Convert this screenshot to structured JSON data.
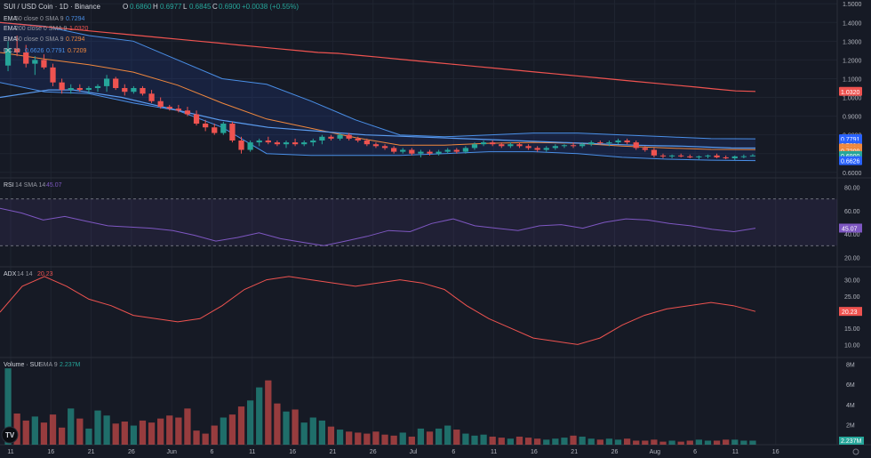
{
  "header": {
    "symbol": "SUI / USD Coin · 1D · Binance",
    "ohlc": {
      "o_label": "O",
      "o": "0.6860",
      "h_label": "H",
      "h": "0.6977",
      "l_label": "L",
      "l": "0.6845",
      "c_label": "C",
      "c": "0.6900",
      "chg": "+0.0038 (+0.55%)"
    }
  },
  "indicators": [
    {
      "name": "EMA",
      "params": "50 close 0 SMA 9",
      "value": "0.7294",
      "color": "#4a8fe7"
    },
    {
      "name": "EMA",
      "params": "200 close 0 SMA 9",
      "value": "1.0320",
      "color": "#ef5350"
    },
    {
      "name": "EMA",
      "params": "50 close 0 SMA 9",
      "value": "0.7294",
      "color": "#f0883e"
    },
    {
      "name": "DC",
      "params": "20",
      "values": [
        "0.6626",
        "0.7791",
        "0.7209"
      ],
      "colors": [
        "#4a8fe7",
        "#4a8fe7",
        "#f0883e"
      ]
    }
  ],
  "price_axis": {
    "ticks": [
      "1.5000",
      "1.4000",
      "1.3000",
      "1.2000",
      "1.1000",
      "1.0000",
      "0.9000",
      "0.8000",
      "0.7000",
      "0.6000"
    ],
    "badges": [
      {
        "text": "1.0320",
        "value": 1.032,
        "color": "#ef5350"
      },
      {
        "text": "0.7791",
        "value": 0.7791,
        "color": "#2962ff"
      },
      {
        "text": "0.7294",
        "value": 0.745,
        "color": "#2962ff"
      },
      {
        "text": "0.7294",
        "value": 0.7294,
        "color": "#f0883e"
      },
      {
        "text": "0.7209",
        "value": 0.715,
        "color": "#f0883e"
      },
      {
        "text": "0.6900",
        "value": 0.69,
        "color": "#26a69a"
      },
      {
        "text": "0.6626",
        "value": 0.6626,
        "color": "#2962ff"
      }
    ]
  },
  "rsi": {
    "label": "RSI",
    "params": "14 SMA 14",
    "value": "45.07",
    "color": "#7e57c2",
    "ticks": [
      "80.00",
      "60.00",
      "40.00",
      "20.00"
    ],
    "badge": "45.07"
  },
  "adx": {
    "label": "ADX",
    "params": "14 14",
    "value": "20.23",
    "color": "#ef5350",
    "ticks": [
      "30.00",
      "25.00",
      "20.00",
      "15.00",
      "10.00"
    ],
    "badge": "20.23"
  },
  "volume": {
    "label": "Volume · SUI",
    "params": "SMA 9",
    "value": "2.237M",
    "ticks": [
      "8M",
      "6M",
      "4M",
      "2M"
    ],
    "badge": "2.237M"
  },
  "time_axis": {
    "labels": [
      "11",
      "16",
      "21",
      "26",
      "Jun",
      "6",
      "11",
      "16",
      "21",
      "26",
      "Jul",
      "6",
      "11",
      "16",
      "21",
      "26",
      "Aug",
      "6",
      "11",
      "16"
    ]
  },
  "logo": "TV",
  "colors": {
    "up": "#26a69a",
    "down": "#ef5350",
    "bg": "#161a25",
    "grid": "#1f2430",
    "dc_band": "#4a8fe7",
    "ema200": "#ef5350",
    "ema50": "#5b9cf0",
    "basis": "#f0883e",
    "rsi": "#7e57c2"
  },
  "chart_data": {
    "type": "candlestick",
    "title": "SUI / USD Coin · 1D · Binance",
    "ylim": [
      0.58,
      1.52
    ],
    "candles": [
      [
        1.17,
        1.3,
        1.14,
        1.26
      ],
      [
        1.26,
        1.33,
        1.22,
        1.24
      ],
      [
        1.24,
        1.28,
        1.16,
        1.18
      ],
      [
        1.18,
        1.22,
        1.12,
        1.2
      ],
      [
        1.2,
        1.23,
        1.15,
        1.16
      ],
      [
        1.16,
        1.18,
        1.06,
        1.08
      ],
      [
        1.08,
        1.1,
        1.02,
        1.04
      ],
      [
        1.04,
        1.07,
        1.02,
        1.05
      ],
      [
        1.05,
        1.07,
        1.03,
        1.04
      ],
      [
        1.04,
        1.06,
        1.02,
        1.05
      ],
      [
        1.05,
        1.07,
        1.03,
        1.06
      ],
      [
        1.06,
        1.12,
        1.03,
        1.1
      ],
      [
        1.1,
        1.11,
        1.04,
        1.05
      ],
      [
        1.05,
        1.07,
        1.01,
        1.03
      ],
      [
        1.03,
        1.06,
        1.02,
        1.05
      ],
      [
        1.05,
        1.06,
        1.01,
        1.02
      ],
      [
        1.02,
        1.04,
        0.97,
        0.98
      ],
      [
        0.98,
        1.0,
        0.94,
        0.95
      ],
      [
        0.95,
        0.96,
        0.93,
        0.94
      ],
      [
        0.94,
        0.96,
        0.92,
        0.93
      ],
      [
        0.93,
        0.95,
        0.9,
        0.91
      ],
      [
        0.91,
        0.93,
        0.85,
        0.86
      ],
      [
        0.86,
        0.88,
        0.82,
        0.84
      ],
      [
        0.84,
        0.86,
        0.8,
        0.81
      ],
      [
        0.81,
        0.87,
        0.8,
        0.86
      ],
      [
        0.86,
        0.87,
        0.76,
        0.77
      ],
      [
        0.77,
        0.79,
        0.7,
        0.72
      ],
      [
        0.72,
        0.77,
        0.71,
        0.76
      ],
      [
        0.76,
        0.78,
        0.74,
        0.77
      ],
      [
        0.77,
        0.79,
        0.75,
        0.76
      ],
      [
        0.76,
        0.77,
        0.74,
        0.75
      ],
      [
        0.75,
        0.77,
        0.73,
        0.76
      ],
      [
        0.76,
        0.78,
        0.74,
        0.75
      ],
      [
        0.75,
        0.77,
        0.74,
        0.76
      ],
      [
        0.76,
        0.78,
        0.74,
        0.77
      ],
      [
        0.77,
        0.8,
        0.75,
        0.79
      ],
      [
        0.79,
        0.8,
        0.77,
        0.78
      ],
      [
        0.78,
        0.81,
        0.77,
        0.8
      ],
      [
        0.8,
        0.81,
        0.77,
        0.78
      ],
      [
        0.78,
        0.79,
        0.76,
        0.77
      ],
      [
        0.77,
        0.78,
        0.74,
        0.75
      ],
      [
        0.75,
        0.76,
        0.73,
        0.74
      ],
      [
        0.74,
        0.75,
        0.72,
        0.73
      ],
      [
        0.73,
        0.74,
        0.7,
        0.71
      ],
      [
        0.71,
        0.73,
        0.7,
        0.72
      ],
      [
        0.72,
        0.73,
        0.69,
        0.7
      ],
      [
        0.7,
        0.72,
        0.68,
        0.71
      ],
      [
        0.71,
        0.72,
        0.69,
        0.7
      ],
      [
        0.7,
        0.72,
        0.69,
        0.71
      ],
      [
        0.71,
        0.73,
        0.7,
        0.72
      ],
      [
        0.72,
        0.73,
        0.7,
        0.71
      ],
      [
        0.71,
        0.74,
        0.7,
        0.73
      ],
      [
        0.73,
        0.76,
        0.72,
        0.75
      ],
      [
        0.75,
        0.77,
        0.74,
        0.76
      ],
      [
        0.76,
        0.77,
        0.74,
        0.75
      ],
      [
        0.75,
        0.76,
        0.73,
        0.74
      ],
      [
        0.74,
        0.76,
        0.73,
        0.75
      ],
      [
        0.75,
        0.76,
        0.73,
        0.74
      ],
      [
        0.74,
        0.75,
        0.72,
        0.73
      ],
      [
        0.73,
        0.74,
        0.71,
        0.72
      ],
      [
        0.72,
        0.74,
        0.71,
        0.73
      ],
      [
        0.73,
        0.75,
        0.72,
        0.74
      ],
      [
        0.74,
        0.75,
        0.73,
        0.745
      ],
      [
        0.745,
        0.76,
        0.73,
        0.74
      ],
      [
        0.74,
        0.76,
        0.73,
        0.75
      ],
      [
        0.75,
        0.77,
        0.74,
        0.76
      ],
      [
        0.76,
        0.77,
        0.75,
        0.755
      ],
      [
        0.755,
        0.77,
        0.74,
        0.76
      ],
      [
        0.76,
        0.78,
        0.75,
        0.77
      ],
      [
        0.77,
        0.78,
        0.75,
        0.76
      ],
      [
        0.76,
        0.77,
        0.72,
        0.73
      ],
      [
        0.73,
        0.74,
        0.71,
        0.72
      ],
      [
        0.72,
        0.73,
        0.68,
        0.69
      ],
      [
        0.69,
        0.7,
        0.675,
        0.685
      ],
      [
        0.685,
        0.695,
        0.675,
        0.69
      ],
      [
        0.69,
        0.7,
        0.68,
        0.685
      ],
      [
        0.685,
        0.695,
        0.675,
        0.68
      ],
      [
        0.68,
        0.69,
        0.67,
        0.685
      ],
      [
        0.685,
        0.695,
        0.675,
        0.69
      ],
      [
        0.69,
        0.7,
        0.675,
        0.68
      ],
      [
        0.68,
        0.69,
        0.67,
        0.675
      ],
      [
        0.675,
        0.69,
        0.665,
        0.685
      ],
      [
        0.685,
        0.695,
        0.675,
        0.686
      ],
      [
        0.686,
        0.6977,
        0.6845,
        0.69
      ]
    ],
    "ema200": [
      1.4,
      1.39,
      1.38,
      1.37,
      1.36,
      1.35,
      1.34,
      1.33,
      1.32,
      1.31,
      1.3,
      1.29,
      1.28,
      1.27,
      1.26,
      1.25,
      1.24,
      1.235,
      1.225,
      1.215,
      1.205,
      1.195,
      1.185,
      1.175,
      1.165,
      1.155,
      1.145,
      1.135,
      1.125,
      1.115,
      1.105,
      1.095,
      1.085,
      1.075,
      1.065,
      1.055,
      1.045,
      1.035,
      1.032
    ],
    "ema50": [
      1.0,
      1.02,
      1.04,
      1.04,
      1.02,
      1.0,
      0.97,
      0.94,
      0.91,
      0.88,
      0.86,
      0.84,
      0.83,
      0.82,
      0.81,
      0.8,
      0.795,
      0.79,
      0.785,
      0.78,
      0.775,
      0.77,
      0.765,
      0.76,
      0.755,
      0.75,
      0.745,
      0.742,
      0.74,
      0.735,
      0.73,
      0.7294
    ],
    "dc_upper": [
      1.4,
      1.38,
      1.33,
      1.3,
      1.2,
      1.1,
      1.07,
      0.98,
      0.88,
      0.8,
      0.79,
      0.8,
      0.81,
      0.81,
      0.8,
      0.79,
      0.78,
      0.7791
    ],
    "dc_lower": [
      1.08,
      1.03,
      1.02,
      0.97,
      0.93,
      0.84,
      0.7,
      0.69,
      0.69,
      0.69,
      0.7,
      0.71,
      0.71,
      0.7,
      0.68,
      0.67,
      0.665,
      0.6626
    ],
    "rsi": [
      62,
      58,
      52,
      55,
      51,
      47,
      46,
      45,
      43,
      39,
      34,
      37,
      41,
      36,
      33,
      30,
      34,
      38,
      43,
      42,
      49,
      53,
      47,
      45,
      43,
      47,
      48,
      45,
      50,
      53,
      52,
      49,
      47,
      44,
      42,
      45
    ],
    "adx": [
      20,
      28,
      31,
      28,
      24,
      22,
      19,
      18,
      17,
      18,
      22,
      27,
      30,
      31,
      30,
      29,
      28,
      29,
      30,
      29,
      27,
      22,
      18,
      15,
      12,
      11,
      10,
      12,
      16,
      19,
      21,
      22,
      23,
      22,
      20.23
    ],
    "volume": [
      7.6,
      3.1,
      2.4,
      2.8,
      2.2,
      3.0,
      1.7,
      3.6,
      2.6,
      1.6,
      3.4,
      2.9,
      2.1,
      2.3,
      1.9,
      2.4,
      2.2,
      2.6,
      2.9,
      2.7,
      3.6,
      1.4,
      1.1,
      1.9,
      2.7,
      3.0,
      3.8,
      4.4,
      5.7,
      6.4,
      4.1,
      3.3,
      3.5,
      2.2,
      2.7,
      2.4,
      1.8,
      1.5,
      1.3,
      1.2,
      1.1,
      1.3,
      1.0,
      0.9,
      1.2,
      0.8,
      1.6,
      1.3,
      1.6,
      1.9,
      1.5,
      1.1,
      0.9,
      1.0,
      0.8,
      0.7,
      0.6,
      0.8,
      0.7,
      0.6,
      0.5,
      0.6,
      0.7,
      0.9,
      0.8,
      0.6,
      0.5,
      0.6,
      0.5,
      0.6,
      0.4,
      0.4,
      0.5,
      0.3,
      0.4,
      0.3,
      0.4,
      0.5,
      0.4,
      0.4,
      0.5,
      0.5,
      0.4,
      0.4
    ]
  }
}
